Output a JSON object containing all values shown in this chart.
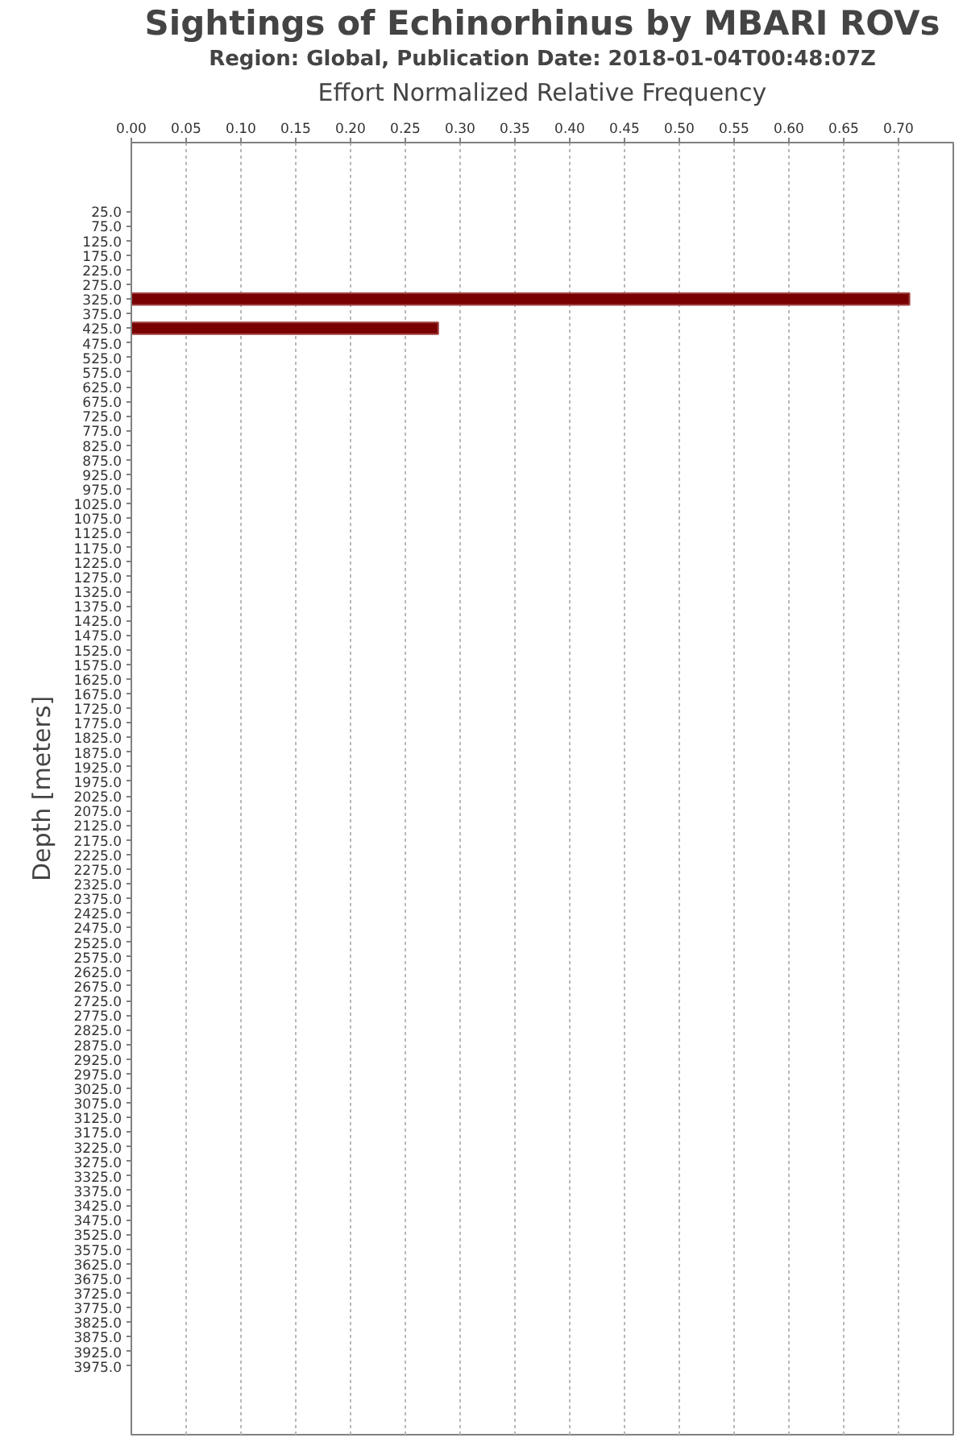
{
  "chart_data": {
    "type": "bar",
    "orientation": "horizontal",
    "title": "Sightings of Echinorhinus by MBARI ROVs",
    "subtitle": "Region: Global, Publication Date: 2018-01-04T00:48:07Z",
    "xlabel": "Effort Normalized Relative Frequency",
    "ylabel": "Depth [meters]",
    "categories": [
      "25.0",
      "75.0",
      "125.0",
      "175.0",
      "225.0",
      "275.0",
      "325.0",
      "375.0",
      "425.0",
      "475.0",
      "525.0",
      "575.0",
      "625.0",
      "675.0",
      "725.0",
      "775.0",
      "825.0",
      "875.0",
      "925.0",
      "975.0",
      "1025.0",
      "1075.0",
      "1125.0",
      "1175.0",
      "1225.0",
      "1275.0",
      "1325.0",
      "1375.0",
      "1425.0",
      "1475.0",
      "1525.0",
      "1575.0",
      "1625.0",
      "1675.0",
      "1725.0",
      "1775.0",
      "1825.0",
      "1875.0",
      "1925.0",
      "1975.0",
      "2025.0",
      "2075.0",
      "2125.0",
      "2175.0",
      "2225.0",
      "2275.0",
      "2325.0",
      "2375.0",
      "2425.0",
      "2475.0",
      "2525.0",
      "2575.0",
      "2625.0",
      "2675.0",
      "2725.0",
      "2775.0",
      "2825.0",
      "2875.0",
      "2925.0",
      "2975.0",
      "3025.0",
      "3075.0",
      "3125.0",
      "3175.0",
      "3225.0",
      "3275.0",
      "3325.0",
      "3375.0",
      "3425.0",
      "3475.0",
      "3525.0",
      "3575.0",
      "3625.0",
      "3675.0",
      "3725.0",
      "3775.0",
      "3825.0",
      "3875.0",
      "3925.0",
      "3975.0"
    ],
    "values": [
      0,
      0,
      0,
      0,
      0,
      0,
      0.71,
      0,
      0.28,
      0,
      0,
      0,
      0,
      0,
      0,
      0,
      0,
      0,
      0,
      0,
      0,
      0,
      0,
      0,
      0,
      0,
      0,
      0,
      0,
      0,
      0,
      0,
      0,
      0,
      0,
      0,
      0,
      0,
      0,
      0,
      0,
      0,
      0,
      0,
      0,
      0,
      0,
      0,
      0,
      0,
      0,
      0,
      0,
      0,
      0,
      0,
      0,
      0,
      0,
      0,
      0,
      0,
      0,
      0,
      0,
      0,
      0,
      0,
      0,
      0,
      0,
      0,
      0,
      0,
      0,
      0,
      0,
      0,
      0,
      0
    ],
    "color": "#780000",
    "xlim": [
      0,
      0.75
    ],
    "xticks": [
      {
        "value": 0,
        "label": "0.00"
      },
      {
        "value": 0.05,
        "label": "0.05"
      },
      {
        "value": 0.1,
        "label": "0.10"
      },
      {
        "value": 0.15,
        "label": "0.15"
      },
      {
        "value": 0.2,
        "label": "0.20"
      },
      {
        "value": 0.25,
        "label": "0.25"
      },
      {
        "value": 0.3,
        "label": "0.30"
      },
      {
        "value": 0.35,
        "label": "0.35"
      },
      {
        "value": 0.4,
        "label": "0.40"
      },
      {
        "value": 0.45,
        "label": "0.45"
      },
      {
        "value": 0.5,
        "label": "0.50"
      },
      {
        "value": 0.55,
        "label": "0.55"
      },
      {
        "value": 0.6,
        "label": "0.60"
      },
      {
        "value": 0.65,
        "label": "0.65"
      },
      {
        "value": 0.7,
        "label": "0.70"
      }
    ],
    "grid": "x"
  }
}
